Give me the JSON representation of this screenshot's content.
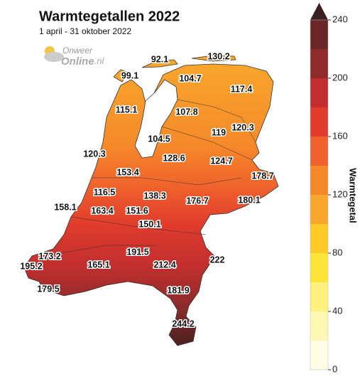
{
  "title": "Warmtegetallen 2022",
  "subtitle": "1 april - 31 oktober 2022",
  "logo": {
    "line1": "Onweer",
    "line2": "Online",
    "suffix": ".nl"
  },
  "stations": [
    92.1,
    130.2,
    99.1,
    104.7,
    117.4,
    115.1,
    107.8,
    119.0,
    120.3,
    104.5,
    120.3,
    128.6,
    124.7,
    178.7,
    153.4,
    116.5,
    138.3,
    176.7,
    180.1,
    158.1,
    163.4,
    151.6,
    150.1,
    173.2,
    191.5,
    222.0,
    195.2,
    165.1,
    212.4,
    179.5,
    181.9,
    244.2
  ],
  "colorbar": {
    "label": "Warmtegetal",
    "lim": [
      0,
      240
    ],
    "ticks": [
      0,
      40,
      80,
      120,
      160,
      200,
      240
    ],
    "colors": [
      "#fffde3",
      "#fff8b4",
      "#fff27c",
      "#ffe53a",
      "#fdca28",
      "#f9a72c",
      "#f5892a",
      "#ef602c",
      "#e03b2c",
      "#c22f2e",
      "#8e2b2b",
      "#6a2727"
    ],
    "extend_color": "#3b2020"
  }
}
